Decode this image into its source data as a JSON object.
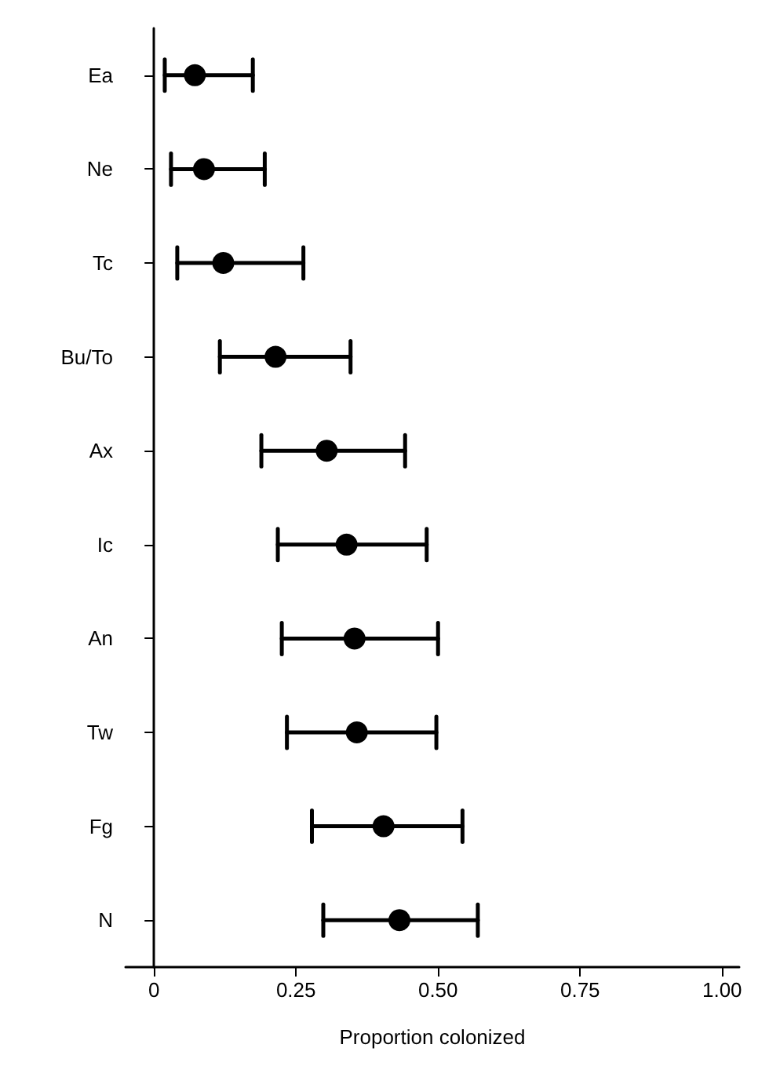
{
  "chart_data": {
    "type": "scatter",
    "categories": [
      "Ea",
      "Ne",
      "Tc",
      "Bu/To",
      "Ax",
      "Ic",
      "An",
      "Tw",
      "Fg",
      "N"
    ],
    "orientation": "horizontal",
    "values": [
      0.072,
      0.088,
      0.122,
      0.214,
      0.304,
      0.339,
      0.353,
      0.357,
      0.404,
      0.432
    ],
    "errors": [
      [
        0.019,
        0.174
      ],
      [
        0.03,
        0.195
      ],
      [
        0.041,
        0.263
      ],
      [
        0.116,
        0.346
      ],
      [
        0.189,
        0.442
      ],
      [
        0.218,
        0.48
      ],
      [
        0.225,
        0.5
      ],
      [
        0.234,
        0.497
      ],
      [
        0.278,
        0.543
      ],
      [
        0.298,
        0.57
      ]
    ],
    "color": "#000000",
    "marker": "circle",
    "xlabel": "Proportion colonized",
    "xlim": [
      -0.05,
      1.03
    ],
    "xticks": [
      {
        "value": 0,
        "label": "0"
      },
      {
        "value": 0.25,
        "label": "0.25"
      },
      {
        "value": 0.5,
        "label": "0.50"
      },
      {
        "value": 0.75,
        "label": "0.75"
      },
      {
        "value": 1,
        "label": "1.00"
      }
    ],
    "grid": false
  }
}
